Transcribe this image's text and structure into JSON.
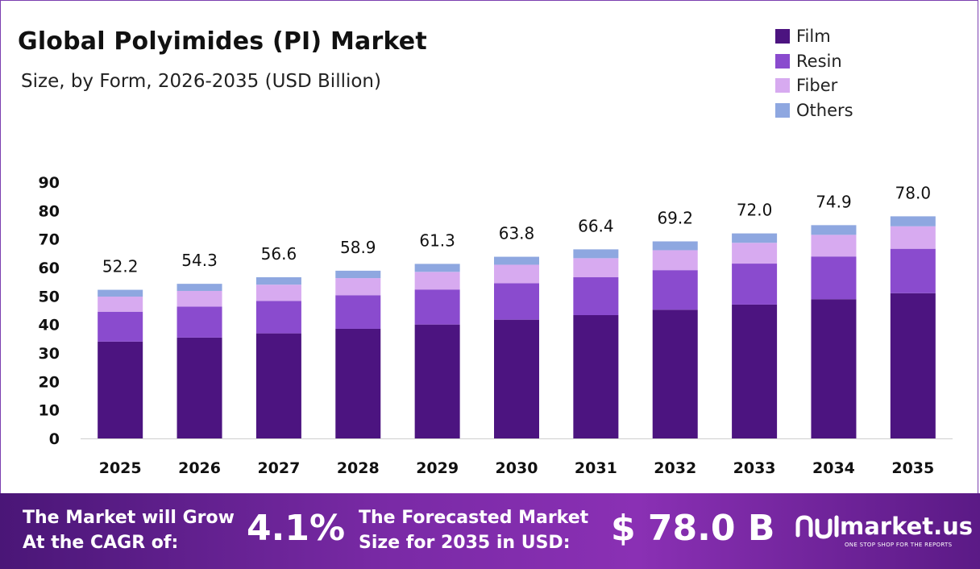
{
  "header": {
    "title": "Global Polyimides (PI) Market",
    "subtitle": "Size, by Form, 2026-2035 (USD Billion)"
  },
  "colors": {
    "film": "#4c1480",
    "resin": "#8a4bce",
    "fiber": "#d7aaf0",
    "others": "#8ea7e0",
    "footer_start": "#4a1677",
    "footer_end": "#8a30b4"
  },
  "chart_data": {
    "type": "bar",
    "stacked": true,
    "categories": [
      "2025",
      "2026",
      "2027",
      "2028",
      "2029",
      "2030",
      "2031",
      "2032",
      "2033",
      "2034",
      "2035"
    ],
    "series": [
      {
        "name": "Film",
        "values": [
          34.0,
          35.4,
          36.9,
          38.5,
          40.0,
          41.7,
          43.3,
          45.2,
          47.0,
          48.9,
          51.0
        ]
      },
      {
        "name": "Resin",
        "values": [
          10.5,
          10.9,
          11.4,
          11.8,
          12.3,
          12.8,
          13.3,
          13.9,
          14.4,
          15.0,
          15.6
        ]
      },
      {
        "name": "Fiber",
        "values": [
          5.3,
          5.5,
          5.7,
          6.0,
          6.2,
          6.5,
          6.7,
          7.0,
          7.3,
          7.6,
          7.9
        ]
      },
      {
        "name": "Others",
        "values": [
          2.4,
          2.5,
          2.6,
          2.6,
          2.8,
          2.8,
          3.1,
          3.1,
          3.3,
          3.4,
          3.5
        ]
      }
    ],
    "totals": [
      "52.2",
      "54.3",
      "56.6",
      "58.9",
      "61.3",
      "63.8",
      "66.4",
      "69.2",
      "72.0",
      "74.9",
      "78.0"
    ],
    "yticks": [
      "0",
      "10",
      "20",
      "30",
      "40",
      "50",
      "60",
      "70",
      "80",
      "90"
    ],
    "ylim": [
      0,
      90
    ],
    "grid": false,
    "legend_position": "top-right"
  },
  "footer": {
    "cagr_label": [
      "The Market will Grow",
      "At the CAGR of:"
    ],
    "cagr_value": "4.1%",
    "forecast_label": [
      "The Forecasted Market",
      "Size for 2035 in USD:"
    ],
    "forecast_value": "$ 78.0 B",
    "brand_name": "market.us",
    "brand_tagline": "ONE STOP SHOP FOR THE REPORTS"
  }
}
